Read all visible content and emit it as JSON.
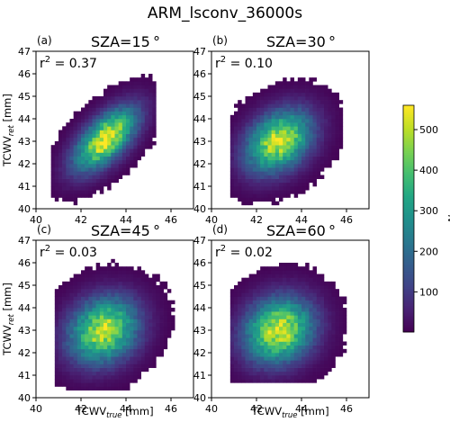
{
  "figure": {
    "title": "ARM_lsconv_36000s",
    "xlabel_main": "TCWV",
    "xlabel_sub": "true",
    "xlabel_unit": " [mm]",
    "ylabel_main": "TCWV",
    "ylabel_sub": "ret",
    "ylabel_unit": " [mm]"
  },
  "colorbar": {
    "label": "N",
    "ticks": [
      100,
      200,
      300,
      400,
      500
    ],
    "tick_labels": [
      "100",
      "200",
      "300",
      "400",
      "500"
    ],
    "range": [
      1,
      560
    ],
    "colormap": "viridis"
  },
  "chart_data": [
    {
      "type": "heatmap",
      "panel": "(a)",
      "title": "SZA=15 °",
      "r2_label": "r",
      "r2_value": " = 0.37",
      "xlim": [
        40,
        47
      ],
      "ylim": [
        40,
        47
      ],
      "xticks": [
        "40",
        "42",
        "44",
        "46"
      ],
      "yticks": [
        "40",
        "41",
        "42",
        "43",
        "44",
        "45",
        "46",
        "47"
      ],
      "distribution": {
        "cx": 43.1,
        "cy": 43.1,
        "sx": 0.85,
        "sy": 0.85,
        "rho": 0.62,
        "peak": 560,
        "xmin": 40.6,
        "xmax": 45.3,
        "ymin": 40.2,
        "ymax": 46.5
      }
    },
    {
      "type": "heatmap",
      "panel": "(b)",
      "title": "SZA=30 °",
      "r2_label": "r",
      "r2_value": " = 0.10",
      "xlim": [
        40,
        47
      ],
      "ylim": [
        40,
        47
      ],
      "xticks": [
        "40",
        "42",
        "44",
        "46"
      ],
      "yticks": [
        "40",
        "41",
        "42",
        "43",
        "44",
        "45",
        "46",
        "47"
      ],
      "distribution": {
        "cx": 43.0,
        "cy": 43.0,
        "sx": 0.9,
        "sy": 0.85,
        "rho": 0.32,
        "peak": 520,
        "xmin": 40.8,
        "xmax": 45.9,
        "ymin": 40.2,
        "ymax": 46.4
      }
    },
    {
      "type": "heatmap",
      "panel": "(c)",
      "title": "SZA=45 °",
      "r2_label": "r",
      "r2_value": " = 0.03",
      "xlim": [
        40,
        47
      ],
      "ylim": [
        40,
        47
      ],
      "xticks": [
        "40",
        "42",
        "44",
        "46"
      ],
      "yticks": [
        "40",
        "41",
        "42",
        "43",
        "44",
        "45",
        "46",
        "47"
      ],
      "distribution": {
        "cx": 43.0,
        "cy": 43.0,
        "sx": 0.95,
        "sy": 0.9,
        "rho": 0.18,
        "peak": 500,
        "xmin": 40.8,
        "xmax": 46.2,
        "ymin": 40.4,
        "ymax": 46.4
      }
    },
    {
      "type": "heatmap",
      "panel": "(d)",
      "title": "SZA=60 °",
      "r2_label": "r",
      "r2_value": " = 0.02",
      "xlim": [
        40,
        47
      ],
      "ylim": [
        40,
        47
      ],
      "xticks": [
        "40",
        "42",
        "44",
        "46"
      ],
      "yticks": [
        "40",
        "41",
        "42",
        "43",
        "44",
        "45",
        "46",
        "47"
      ],
      "distribution": {
        "cx": 43.0,
        "cy": 43.0,
        "sx": 0.95,
        "sy": 0.9,
        "rho": 0.14,
        "peak": 520,
        "xmin": 40.8,
        "xmax": 46.0,
        "ymin": 40.6,
        "ymax": 46.5
      }
    }
  ]
}
